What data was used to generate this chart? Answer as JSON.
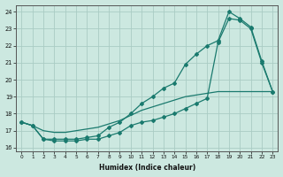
{
  "xlabel": "Humidex (Indice chaleur)",
  "bg_color": "#cce8e0",
  "grid_color": "#aaccC4",
  "line_color": "#1a7a6e",
  "xlim": [
    -0.5,
    23.5
  ],
  "ylim": [
    15.8,
    24.4
  ],
  "xticks": [
    0,
    1,
    2,
    3,
    4,
    5,
    6,
    7,
    8,
    9,
    10,
    11,
    12,
    13,
    14,
    15,
    16,
    17,
    18,
    19,
    20,
    21,
    22,
    23
  ],
  "yticks": [
    16,
    17,
    18,
    19,
    20,
    21,
    22,
    23,
    24
  ],
  "smooth_x": [
    0,
    1,
    2,
    3,
    4,
    5,
    6,
    7,
    8,
    9,
    10,
    11,
    12,
    13,
    14,
    15,
    16,
    17,
    18,
    19,
    20,
    21,
    22,
    23
  ],
  "smooth_y": [
    17.5,
    17.3,
    17.0,
    16.9,
    16.9,
    17.0,
    17.1,
    17.2,
    17.4,
    17.6,
    17.9,
    18.2,
    18.4,
    18.6,
    18.8,
    19.0,
    19.1,
    19.2,
    19.3,
    19.3,
    19.3,
    19.3,
    19.3,
    19.3
  ],
  "curve1_x": [
    0,
    1,
    2,
    3,
    4,
    5,
    6,
    7,
    8,
    9,
    10,
    11,
    12,
    13,
    14,
    15,
    16,
    17,
    18,
    19,
    20,
    21,
    22,
    23
  ],
  "curve1_y": [
    17.5,
    17.3,
    16.5,
    16.5,
    16.5,
    16.5,
    16.6,
    16.7,
    17.2,
    17.5,
    18.0,
    18.6,
    19.0,
    19.5,
    19.8,
    20.9,
    21.5,
    22.0,
    22.3,
    24.0,
    23.6,
    23.1,
    21.1,
    19.3
  ],
  "curve2_x": [
    0,
    1,
    2,
    3,
    4,
    5,
    6,
    7,
    8,
    9,
    10,
    11,
    12,
    13,
    14,
    15,
    16,
    17,
    18,
    19,
    20,
    21,
    22,
    23
  ],
  "curve2_y": [
    17.5,
    17.3,
    16.5,
    16.4,
    16.4,
    16.4,
    16.5,
    16.5,
    16.7,
    16.9,
    17.3,
    17.5,
    17.6,
    17.8,
    18.0,
    18.3,
    18.6,
    18.9,
    22.2,
    23.6,
    23.5,
    23.0,
    21.0,
    19.3
  ]
}
